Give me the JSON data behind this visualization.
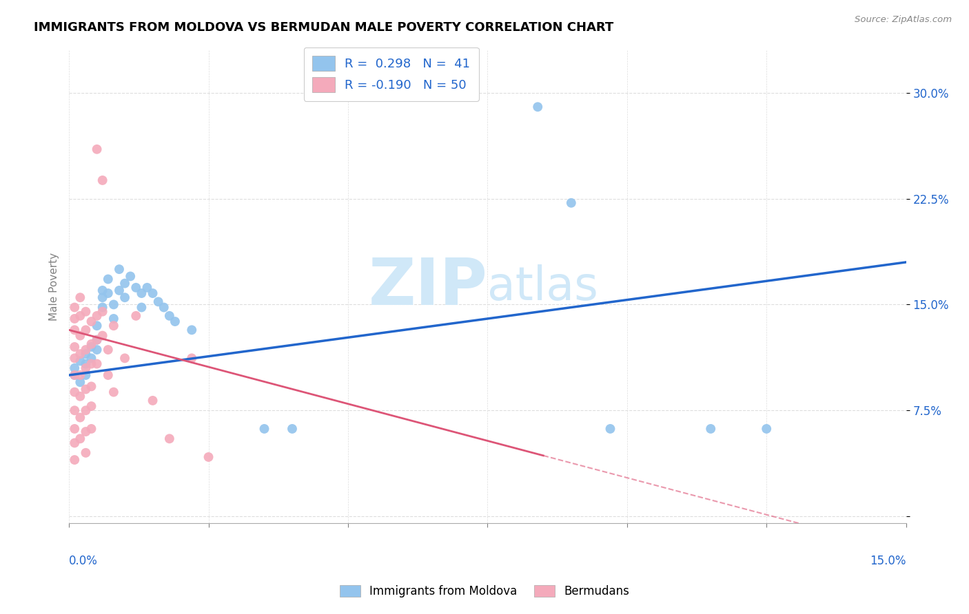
{
  "title": "IMMIGRANTS FROM MOLDOVA VS BERMUDAN MALE POVERTY CORRELATION CHART",
  "source": "Source: ZipAtlas.com",
  "ylabel": "Male Poverty",
  "yticks": [
    0.0,
    0.075,
    0.15,
    0.225,
    0.3
  ],
  "ytick_labels": [
    "",
    "7.5%",
    "15.0%",
    "22.5%",
    "30.0%"
  ],
  "xticks": [
    0.0,
    0.025,
    0.05,
    0.075,
    0.1,
    0.125,
    0.15
  ],
  "xlim": [
    0.0,
    0.15
  ],
  "ylim": [
    -0.005,
    0.33
  ],
  "blue_color": "#93C4ED",
  "pink_color": "#F4AABB",
  "blue_line_color": "#2266CC",
  "pink_line_color": "#DD5577",
  "watermark_color": "#D0E8F8",
  "moldova_points": [
    [
      0.001,
      0.1
    ],
    [
      0.001,
      0.105
    ],
    [
      0.002,
      0.095
    ],
    [
      0.002,
      0.11
    ],
    [
      0.003,
      0.108
    ],
    [
      0.003,
      0.1
    ],
    [
      0.003,
      0.115
    ],
    [
      0.004,
      0.12
    ],
    [
      0.004,
      0.112
    ],
    [
      0.005,
      0.135
    ],
    [
      0.005,
      0.125
    ],
    [
      0.005,
      0.118
    ],
    [
      0.006,
      0.155
    ],
    [
      0.006,
      0.148
    ],
    [
      0.006,
      0.16
    ],
    [
      0.007,
      0.168
    ],
    [
      0.007,
      0.158
    ],
    [
      0.008,
      0.15
    ],
    [
      0.008,
      0.14
    ],
    [
      0.009,
      0.175
    ],
    [
      0.009,
      0.16
    ],
    [
      0.01,
      0.165
    ],
    [
      0.01,
      0.155
    ],
    [
      0.011,
      0.17
    ],
    [
      0.012,
      0.162
    ],
    [
      0.013,
      0.158
    ],
    [
      0.013,
      0.148
    ],
    [
      0.014,
      0.162
    ],
    [
      0.015,
      0.158
    ],
    [
      0.016,
      0.152
    ],
    [
      0.017,
      0.148
    ],
    [
      0.018,
      0.142
    ],
    [
      0.019,
      0.138
    ],
    [
      0.022,
      0.132
    ],
    [
      0.035,
      0.062
    ],
    [
      0.04,
      0.062
    ],
    [
      0.084,
      0.29
    ],
    [
      0.09,
      0.222
    ],
    [
      0.097,
      0.062
    ],
    [
      0.115,
      0.062
    ],
    [
      0.125,
      0.062
    ]
  ],
  "bermuda_points": [
    [
      0.001,
      0.148
    ],
    [
      0.001,
      0.14
    ],
    [
      0.001,
      0.132
    ],
    [
      0.001,
      0.12
    ],
    [
      0.001,
      0.112
    ],
    [
      0.001,
      0.1
    ],
    [
      0.001,
      0.088
    ],
    [
      0.001,
      0.075
    ],
    [
      0.001,
      0.062
    ],
    [
      0.001,
      0.052
    ],
    [
      0.001,
      0.04
    ],
    [
      0.002,
      0.155
    ],
    [
      0.002,
      0.142
    ],
    [
      0.002,
      0.128
    ],
    [
      0.002,
      0.115
    ],
    [
      0.002,
      0.1
    ],
    [
      0.002,
      0.085
    ],
    [
      0.002,
      0.07
    ],
    [
      0.002,
      0.055
    ],
    [
      0.003,
      0.145
    ],
    [
      0.003,
      0.132
    ],
    [
      0.003,
      0.118
    ],
    [
      0.003,
      0.105
    ],
    [
      0.003,
      0.09
    ],
    [
      0.003,
      0.075
    ],
    [
      0.003,
      0.06
    ],
    [
      0.003,
      0.045
    ],
    [
      0.004,
      0.138
    ],
    [
      0.004,
      0.122
    ],
    [
      0.004,
      0.108
    ],
    [
      0.004,
      0.092
    ],
    [
      0.004,
      0.078
    ],
    [
      0.004,
      0.062
    ],
    [
      0.005,
      0.26
    ],
    [
      0.005,
      0.142
    ],
    [
      0.005,
      0.125
    ],
    [
      0.005,
      0.108
    ],
    [
      0.006,
      0.238
    ],
    [
      0.006,
      0.145
    ],
    [
      0.006,
      0.128
    ],
    [
      0.007,
      0.118
    ],
    [
      0.007,
      0.1
    ],
    [
      0.008,
      0.135
    ],
    [
      0.008,
      0.088
    ],
    [
      0.01,
      0.112
    ],
    [
      0.012,
      0.142
    ],
    [
      0.015,
      0.082
    ],
    [
      0.018,
      0.055
    ],
    [
      0.022,
      0.112
    ],
    [
      0.025,
      0.042
    ]
  ]
}
